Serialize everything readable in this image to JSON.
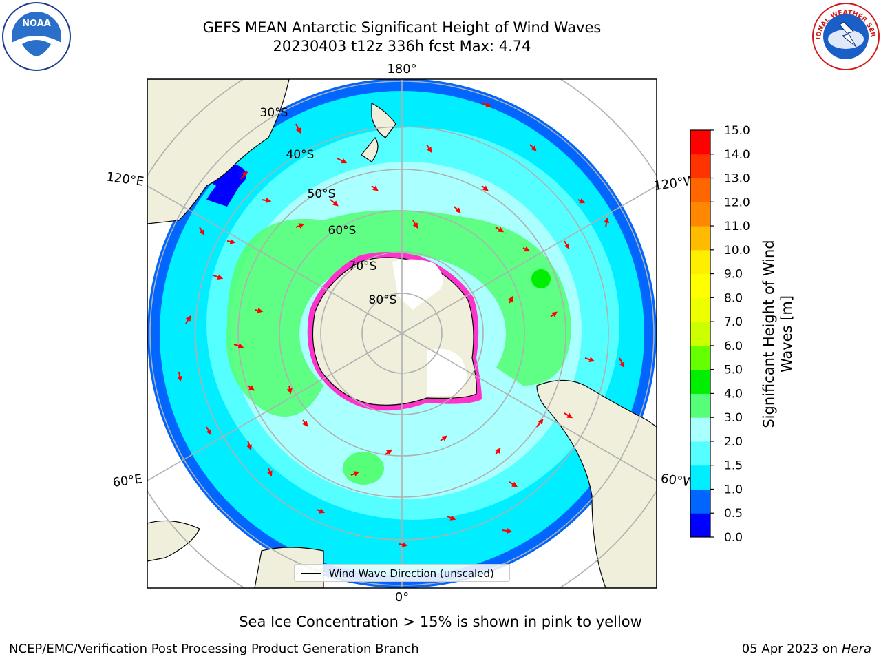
{
  "title": {
    "line1": "GEFS MEAN Antarctic Significant Height of Wind Waves",
    "line2": "20230403 t12z 336h fcst   Max: 4.74"
  },
  "map": {
    "projection": "south-polar-stereographic",
    "longitude_labels": [
      {
        "name": "lon-180",
        "text": "180°"
      },
      {
        "name": "lon-120e",
        "text": "120°E"
      },
      {
        "name": "lon-120w",
        "text": "120°W"
      },
      {
        "name": "lon-60e",
        "text": "60°E"
      },
      {
        "name": "lon-60w",
        "text": "60°W"
      },
      {
        "name": "lon-0",
        "text": "0°"
      }
    ],
    "latitude_labels": [
      "30°S",
      "40°S",
      "50°S",
      "60°S",
      "70°S",
      "80°S"
    ],
    "colors": {
      "land": "#efefdb",
      "antarctica_ice_free": "#ffffff",
      "grid": "#b0b0b0",
      "arrows": "#ff0000",
      "sea_ice_edge": "#ff33cc"
    }
  },
  "legend": {
    "line_label": "Wind Wave Direction (unscaled)"
  },
  "colorbar": {
    "label_line1": "Significant Height of Wind",
    "label_line2": "Waves [m]",
    "ticks": [
      "0.0",
      "0.5",
      "1.0",
      "1.5",
      "2.0",
      "3.0",
      "4.0",
      "5.0",
      "6.0",
      "7.0",
      "8.0",
      "9.0",
      "10.0",
      "11.0",
      "12.0",
      "13.0",
      "14.0",
      "15.0"
    ],
    "colors": [
      "#0000ff",
      "#0066ff",
      "#00eeff",
      "#55ffff",
      "#aaffff",
      "#55ff77",
      "#00ee00",
      "#66ff00",
      "#ccff00",
      "#eeff00",
      "#ffff00",
      "#ffee00",
      "#ffbb00",
      "#ff8800",
      "#ff6600",
      "#ff3300",
      "#ff0000"
    ]
  },
  "notes": {
    "sea_ice": "Sea Ice Concentration > 15% is shown in pink to yellow"
  },
  "footer": {
    "left": "NCEP/EMC/Verification Post Processing Product Generation Branch",
    "right_date": "05 Apr 2023 on ",
    "right_host": "Hera"
  },
  "logos": {
    "noaa": "NOAA",
    "nws": "NATIONAL WEATHER SERVICE"
  }
}
